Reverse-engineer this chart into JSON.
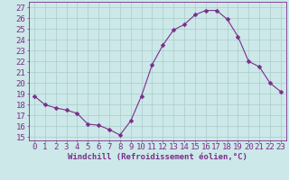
{
  "x": [
    0,
    1,
    2,
    3,
    4,
    5,
    6,
    7,
    8,
    9,
    10,
    11,
    12,
    13,
    14,
    15,
    16,
    17,
    18,
    19,
    20,
    21,
    22,
    23
  ],
  "y": [
    18.8,
    18.0,
    17.7,
    17.5,
    17.2,
    16.2,
    16.1,
    15.7,
    15.2,
    16.5,
    18.8,
    21.7,
    23.5,
    24.9,
    25.4,
    26.3,
    26.7,
    26.7,
    25.9,
    24.3,
    22.0,
    21.5,
    20.0,
    19.2
  ],
  "line_color": "#7b2d8b",
  "marker": "D",
  "marker_size": 2.5,
  "bg_color": "#cce8e8",
  "grid_color": "#aacccc",
  "xlabel": "Windchill (Refroidissement éolien,°C)",
  "ylabel_ticks": [
    15,
    16,
    17,
    18,
    19,
    20,
    21,
    22,
    23,
    24,
    25,
    26,
    27
  ],
  "ylim": [
    14.7,
    27.5
  ],
  "xlim": [
    -0.5,
    23.5
  ],
  "xlabel_fontsize": 6.5,
  "tick_fontsize": 6.5,
  "tick_color": "#7b2d8b",
  "axis_color": "#7b2d8b"
}
